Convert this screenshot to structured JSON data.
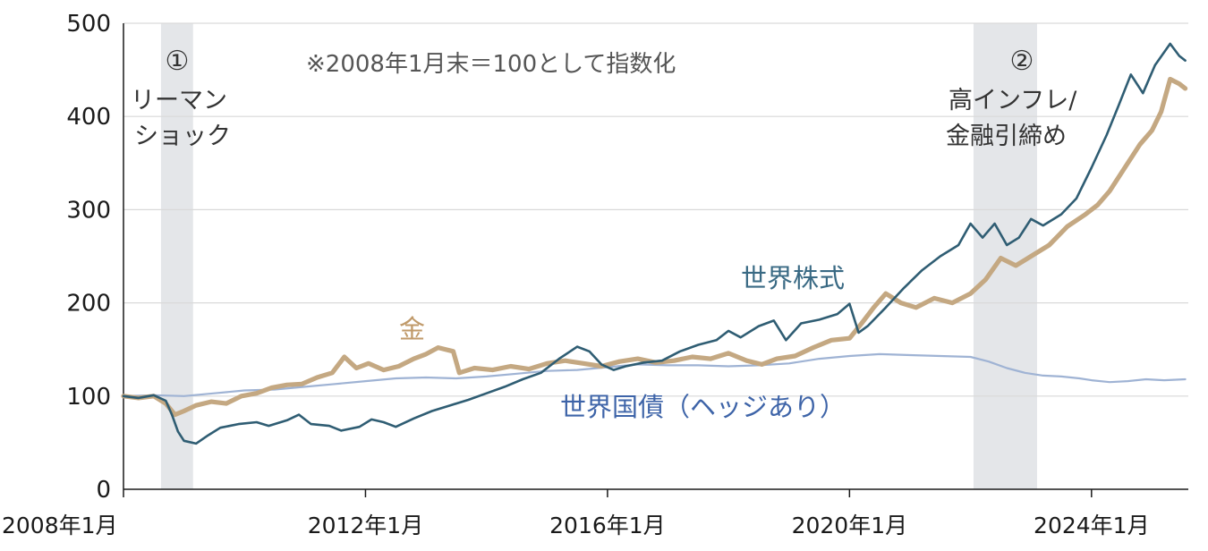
{
  "chart_data": {
    "type": "line",
    "note": "※2008年1月末＝100として指数化",
    "ylim": [
      0,
      500
    ],
    "yticks": [
      0,
      100,
      200,
      300,
      400,
      500
    ],
    "xlim": [
      2008.0,
      2025.6
    ],
    "xticks": [
      {
        "value": 2008.0,
        "label": "2008年1月"
      },
      {
        "value": 2012.0,
        "label": "2012年1月"
      },
      {
        "value": 2016.0,
        "label": "2016年1月"
      },
      {
        "value": 2020.0,
        "label": "2020年1月"
      },
      {
        "value": 2024.0,
        "label": "2024年1月"
      }
    ],
    "shaded_periods": [
      {
        "marker": "①",
        "label_lines": [
          "リーマン",
          "ショック"
        ],
        "start": 2008.62,
        "end": 2009.15
      },
      {
        "marker": "②",
        "label_lines": [
          "高インフレ/",
          "金融引締め"
        ],
        "start": 2022.05,
        "end": 2023.1
      }
    ],
    "series": [
      {
        "name": "世界株式",
        "color": "#2f5d73",
        "points": [
          [
            2008.0,
            100
          ],
          [
            2008.25,
            98
          ],
          [
            2008.5,
            101
          ],
          [
            2008.7,
            95
          ],
          [
            2008.8,
            80
          ],
          [
            2008.9,
            62
          ],
          [
            2009.0,
            52
          ],
          [
            2009.2,
            49
          ],
          [
            2009.4,
            58
          ],
          [
            2009.6,
            66
          ],
          [
            2009.9,
            70
          ],
          [
            2010.2,
            72
          ],
          [
            2010.4,
            68
          ],
          [
            2010.7,
            74
          ],
          [
            2010.9,
            80
          ],
          [
            2011.1,
            70
          ],
          [
            2011.4,
            68
          ],
          [
            2011.6,
            63
          ],
          [
            2011.9,
            67
          ],
          [
            2012.1,
            75
          ],
          [
            2012.3,
            72
          ],
          [
            2012.5,
            67
          ],
          [
            2012.8,
            76
          ],
          [
            2013.1,
            84
          ],
          [
            2013.4,
            90
          ],
          [
            2013.7,
            96
          ],
          [
            2014.0,
            103
          ],
          [
            2014.3,
            110
          ],
          [
            2014.6,
            118
          ],
          [
            2014.9,
            125
          ],
          [
            2015.2,
            140
          ],
          [
            2015.5,
            153
          ],
          [
            2015.7,
            148
          ],
          [
            2015.9,
            134
          ],
          [
            2016.1,
            128
          ],
          [
            2016.3,
            132
          ],
          [
            2016.6,
            136
          ],
          [
            2016.9,
            138
          ],
          [
            2017.2,
            148
          ],
          [
            2017.5,
            155
          ],
          [
            2017.8,
            160
          ],
          [
            2018.0,
            170
          ],
          [
            2018.2,
            163
          ],
          [
            2018.5,
            175
          ],
          [
            2018.75,
            181
          ],
          [
            2018.95,
            160
          ],
          [
            2019.2,
            178
          ],
          [
            2019.5,
            182
          ],
          [
            2019.8,
            188
          ],
          [
            2020.0,
            199
          ],
          [
            2020.15,
            168
          ],
          [
            2020.3,
            175
          ],
          [
            2020.6,
            195
          ],
          [
            2020.9,
            216
          ],
          [
            2021.2,
            235
          ],
          [
            2021.5,
            250
          ],
          [
            2021.8,
            262
          ],
          [
            2022.0,
            285
          ],
          [
            2022.2,
            270
          ],
          [
            2022.4,
            285
          ],
          [
            2022.6,
            262
          ],
          [
            2022.8,
            270
          ],
          [
            2023.0,
            290
          ],
          [
            2023.2,
            283
          ],
          [
            2023.5,
            295
          ],
          [
            2023.75,
            312
          ],
          [
            2024.0,
            345
          ],
          [
            2024.25,
            380
          ],
          [
            2024.45,
            412
          ],
          [
            2024.65,
            445
          ],
          [
            2024.85,
            425
          ],
          [
            2025.05,
            455
          ],
          [
            2025.3,
            478
          ],
          [
            2025.45,
            465
          ],
          [
            2025.55,
            460
          ]
        ]
      },
      {
        "name": "金",
        "color": "#c4a882",
        "points": [
          [
            2008.0,
            100
          ],
          [
            2008.25,
            98
          ],
          [
            2008.5,
            100
          ],
          [
            2008.7,
            92
          ],
          [
            2008.85,
            80
          ],
          [
            2009.0,
            84
          ],
          [
            2009.2,
            90
          ],
          [
            2009.45,
            94
          ],
          [
            2009.7,
            92
          ],
          [
            2009.95,
            100
          ],
          [
            2010.2,
            103
          ],
          [
            2010.45,
            109
          ],
          [
            2010.7,
            112
          ],
          [
            2010.95,
            113
          ],
          [
            2011.2,
            120
          ],
          [
            2011.45,
            125
          ],
          [
            2011.65,
            142
          ],
          [
            2011.85,
            130
          ],
          [
            2012.05,
            135
          ],
          [
            2012.3,
            128
          ],
          [
            2012.55,
            132
          ],
          [
            2012.8,
            140
          ],
          [
            2013.0,
            145
          ],
          [
            2013.2,
            152
          ],
          [
            2013.45,
            148
          ],
          [
            2013.55,
            125
          ],
          [
            2013.8,
            130
          ],
          [
            2014.1,
            128
          ],
          [
            2014.4,
            132
          ],
          [
            2014.7,
            129
          ],
          [
            2015.0,
            135
          ],
          [
            2015.3,
            138
          ],
          [
            2015.6,
            135
          ],
          [
            2015.9,
            132
          ],
          [
            2016.2,
            137
          ],
          [
            2016.5,
            140
          ],
          [
            2016.8,
            136
          ],
          [
            2017.1,
            138
          ],
          [
            2017.4,
            142
          ],
          [
            2017.7,
            140
          ],
          [
            2018.0,
            146
          ],
          [
            2018.3,
            138
          ],
          [
            2018.55,
            134
          ],
          [
            2018.8,
            140
          ],
          [
            2019.1,
            143
          ],
          [
            2019.4,
            152
          ],
          [
            2019.7,
            160
          ],
          [
            2020.0,
            162
          ],
          [
            2020.2,
            178
          ],
          [
            2020.4,
            195
          ],
          [
            2020.6,
            210
          ],
          [
            2020.85,
            200
          ],
          [
            2021.1,
            195
          ],
          [
            2021.4,
            205
          ],
          [
            2021.7,
            200
          ],
          [
            2022.0,
            210
          ],
          [
            2022.25,
            225
          ],
          [
            2022.5,
            248
          ],
          [
            2022.75,
            240
          ],
          [
            2023.0,
            250
          ],
          [
            2023.3,
            262
          ],
          [
            2023.6,
            282
          ],
          [
            2023.9,
            295
          ],
          [
            2024.1,
            305
          ],
          [
            2024.3,
            320
          ],
          [
            2024.55,
            345
          ],
          [
            2024.8,
            370
          ],
          [
            2025.0,
            385
          ],
          [
            2025.15,
            405
          ],
          [
            2025.3,
            440
          ],
          [
            2025.45,
            435
          ],
          [
            2025.55,
            430
          ]
        ]
      },
      {
        "name": "世界国債（ヘッジあり）",
        "color": "#9fb3d4",
        "points": [
          [
            2008.0,
            100
          ],
          [
            2008.5,
            101
          ],
          [
            2009.0,
            100
          ],
          [
            2009.5,
            103
          ],
          [
            2010.0,
            106
          ],
          [
            2010.5,
            107
          ],
          [
            2011.0,
            110
          ],
          [
            2011.5,
            113
          ],
          [
            2012.0,
            116
          ],
          [
            2012.5,
            119
          ],
          [
            2013.0,
            120
          ],
          [
            2013.5,
            119
          ],
          [
            2014.0,
            121
          ],
          [
            2014.5,
            124
          ],
          [
            2015.0,
            127
          ],
          [
            2015.5,
            128
          ],
          [
            2016.0,
            131
          ],
          [
            2016.5,
            134
          ],
          [
            2017.0,
            133
          ],
          [
            2017.5,
            133
          ],
          [
            2018.0,
            132
          ],
          [
            2018.5,
            133
          ],
          [
            2019.0,
            135
          ],
          [
            2019.5,
            140
          ],
          [
            2020.0,
            143
          ],
          [
            2020.5,
            145
          ],
          [
            2021.0,
            144
          ],
          [
            2021.5,
            143
          ],
          [
            2022.0,
            142
          ],
          [
            2022.3,
            137
          ],
          [
            2022.6,
            130
          ],
          [
            2022.9,
            125
          ],
          [
            2023.2,
            122
          ],
          [
            2023.5,
            121
          ],
          [
            2023.8,
            119
          ],
          [
            2024.0,
            117
          ],
          [
            2024.3,
            115
          ],
          [
            2024.6,
            116
          ],
          [
            2024.9,
            118
          ],
          [
            2025.2,
            117
          ],
          [
            2025.55,
            118
          ]
        ]
      }
    ]
  }
}
